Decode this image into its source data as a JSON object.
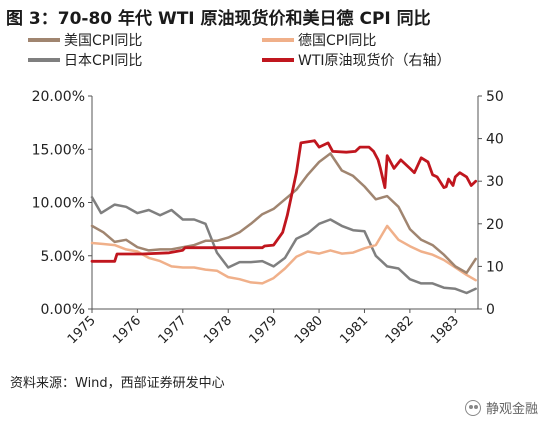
{
  "title": "图 3：70-80 年代 WTI 原油现货价和美日德 CPI 同比",
  "source": "资料来源：Wind，西部证券研发中心",
  "watermark": "静观金融",
  "chart_data": {
    "type": "line",
    "x_range": [
      1975.0,
      1983.5
    ],
    "x_ticks": [
      "1975",
      "1976",
      "1977",
      "1978",
      "1979",
      "1980",
      "1981",
      "1982",
      "1983"
    ],
    "y_left": {
      "ticks": [
        "0.00%",
        "5.00%",
        "10.00%",
        "15.00%",
        "20.00%"
      ],
      "range": [
        0,
        20
      ],
      "unit": "%"
    },
    "y_right": {
      "ticks": [
        "0",
        "10",
        "20",
        "30",
        "40",
        "50"
      ],
      "range": [
        0,
        50
      ]
    },
    "grid": false,
    "legend_position": "top",
    "series": [
      {
        "name": "美国CPI同比",
        "axis": "left",
        "color": "#a08570",
        "width": 2.5,
        "x": [
          1975.0,
          1975.25,
          1975.5,
          1975.75,
          1976.0,
          1976.25,
          1976.5,
          1976.75,
          1977.0,
          1977.25,
          1977.5,
          1977.75,
          1978.0,
          1978.25,
          1978.5,
          1978.75,
          1979.0,
          1979.25,
          1979.5,
          1979.75,
          1980.0,
          1980.25,
          1980.5,
          1980.75,
          1981.0,
          1981.25,
          1981.5,
          1981.75,
          1982.0,
          1982.25,
          1982.5,
          1982.75,
          1983.0,
          1983.25,
          1983.45
        ],
        "values": [
          7.8,
          7.2,
          6.3,
          6.5,
          5.8,
          5.5,
          5.6,
          5.6,
          5.8,
          6.0,
          6.4,
          6.4,
          6.7,
          7.2,
          8.0,
          8.9,
          9.4,
          10.3,
          11.2,
          12.6,
          13.8,
          14.6,
          13.0,
          12.5,
          11.5,
          10.3,
          10.6,
          9.6,
          7.5,
          6.5,
          6.0,
          5.1,
          4.0,
          3.4,
          4.7
        ]
      },
      {
        "name": "德国CPI同比",
        "axis": "left",
        "color": "#f0b08a",
        "width": 2.5,
        "x": [
          1975.0,
          1975.25,
          1975.5,
          1975.75,
          1976.0,
          1976.25,
          1976.5,
          1976.75,
          1977.0,
          1977.25,
          1977.5,
          1977.75,
          1978.0,
          1978.25,
          1978.5,
          1978.75,
          1979.0,
          1979.25,
          1979.5,
          1979.75,
          1980.0,
          1980.25,
          1980.5,
          1980.75,
          1981.0,
          1981.25,
          1981.5,
          1981.75,
          1982.0,
          1982.25,
          1982.5,
          1982.75,
          1983.0,
          1983.25,
          1983.45
        ],
        "values": [
          6.2,
          6.1,
          6.0,
          5.6,
          5.4,
          4.8,
          4.5,
          4.0,
          3.9,
          3.9,
          3.7,
          3.6,
          3.0,
          2.8,
          2.5,
          2.4,
          2.9,
          3.8,
          4.9,
          5.4,
          5.2,
          5.5,
          5.2,
          5.3,
          5.7,
          6.0,
          7.8,
          6.5,
          5.9,
          5.4,
          5.1,
          4.6,
          3.9,
          3.2,
          2.7
        ]
      },
      {
        "name": "日本CPI同比",
        "axis": "left",
        "color": "#7f7f7f",
        "width": 2.5,
        "x": [
          1975.0,
          1975.2,
          1975.5,
          1975.75,
          1976.0,
          1976.25,
          1976.5,
          1976.75,
          1977.0,
          1977.25,
          1977.5,
          1977.75,
          1978.0,
          1978.25,
          1978.5,
          1978.75,
          1979.0,
          1979.25,
          1979.5,
          1979.75,
          1980.0,
          1980.25,
          1980.5,
          1980.75,
          1981.0,
          1981.25,
          1981.5,
          1981.75,
          1982.0,
          1982.25,
          1982.5,
          1982.75,
          1983.0,
          1983.25,
          1983.45
        ],
        "values": [
          10.5,
          9.0,
          9.8,
          9.6,
          9.0,
          9.3,
          8.8,
          9.3,
          8.4,
          8.4,
          8.0,
          5.3,
          3.9,
          4.4,
          4.4,
          4.5,
          4.0,
          4.8,
          6.6,
          7.1,
          8.0,
          8.4,
          7.8,
          7.4,
          7.3,
          5.0,
          4.0,
          3.8,
          2.8,
          2.4,
          2.4,
          2.0,
          1.9,
          1.5,
          1.9
        ]
      },
      {
        "name": "WTI原油现货价（右轴）",
        "axis": "right",
        "color": "#c0161e",
        "width": 2.8,
        "x": [
          1975.0,
          1975.1,
          1975.5,
          1975.55,
          1975.95,
          1976.0,
          1976.1,
          1976.7,
          1977.0,
          1977.05,
          1978.0,
          1978.6,
          1978.75,
          1978.8,
          1979.0,
          1979.2,
          1979.3,
          1979.5,
          1979.6,
          1979.9,
          1980.0,
          1980.2,
          1980.3,
          1980.6,
          1980.8,
          1980.9,
          1981.1,
          1981.2,
          1981.3,
          1981.35,
          1981.45,
          1981.5,
          1981.65,
          1981.8,
          1982.0,
          1982.1,
          1982.25,
          1982.4,
          1982.5,
          1982.6,
          1982.75,
          1982.8,
          1982.85,
          1982.95,
          1983.0,
          1983.1,
          1983.25,
          1983.35,
          1983.45
        ],
        "values": [
          11.2,
          11.2,
          11.2,
          12.9,
          12.9,
          12.9,
          12.9,
          13.2,
          13.8,
          14.4,
          14.4,
          14.4,
          14.4,
          14.8,
          15.0,
          18.0,
          22.0,
          32.0,
          39.0,
          39.5,
          38.0,
          39.0,
          37.0,
          36.8,
          37.0,
          38.0,
          38.0,
          37.0,
          35.0,
          33.0,
          28.5,
          36.0,
          33.0,
          35.0,
          33.0,
          32.0,
          35.5,
          34.5,
          31.5,
          31.0,
          28.5,
          28.7,
          30.5,
          29.0,
          31.0,
          32.0,
          31.0,
          29.0,
          30.0
        ]
      }
    ]
  }
}
